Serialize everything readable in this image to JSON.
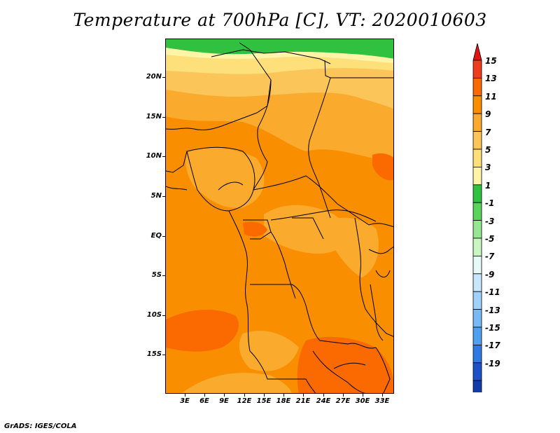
{
  "title": "Temperature at 700hPa [C], VT: 2020010603",
  "credit": "GrADS: IGES/COLA",
  "lat_labels": [
    "20N",
    "15N",
    "10N",
    "5N",
    "EQ",
    "5S",
    "10S",
    "15S"
  ],
  "lon_labels": [
    "3E",
    "6E",
    "9E",
    "12E",
    "15E",
    "18E",
    "21E",
    "24E",
    "27E",
    "30E",
    "33E"
  ],
  "colorbar": {
    "labels": [
      "15",
      "13",
      "11",
      "9",
      "7",
      "5",
      "3",
      "1",
      "-1",
      "-3",
      "-5",
      "-7",
      "-9",
      "-11",
      "-13",
      "-15",
      "-17",
      "-19"
    ],
    "colors": [
      "#f03c1e",
      "#fa6a00",
      "#f98f00",
      "#faaa2c",
      "#fbc55a",
      "#fde07a",
      "#fff4a8",
      "#30c140",
      "#5ad35c",
      "#96e693",
      "#c8f5c0",
      "#e6faf8",
      "#c8e6fc",
      "#a0d1fa",
      "#78b9f6",
      "#50a0f0",
      "#3278e1",
      "#1e50c8",
      "#143ca8",
      "#0a1e78",
      "#d8d8f2"
    ],
    "top_color": "#e11410"
  },
  "colors": {
    "green": "#30c140",
    "pale_yellow": "#fff4a8",
    "light_yellow": "#fde07a",
    "light_orange": "#fbc55a",
    "orange": "#faaa2c",
    "dark_orange": "#f98f00",
    "red_orange": "#fa6a00",
    "border": "#000000"
  }
}
